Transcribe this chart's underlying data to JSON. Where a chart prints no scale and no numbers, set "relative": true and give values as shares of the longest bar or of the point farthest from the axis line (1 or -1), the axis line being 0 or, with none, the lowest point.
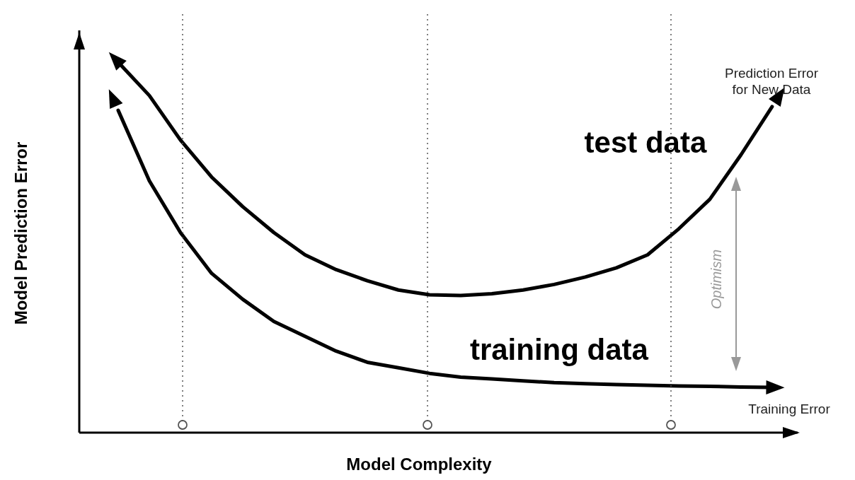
{
  "chart_data": {
    "type": "line",
    "relative": true,
    "xlabel": "Model Complexity",
    "ylabel": "Model Prediction Error",
    "tick_labels": false,
    "line_style": "solid",
    "marker": "none",
    "categories": [
      null,
      null,
      null,
      null,
      null,
      null,
      null,
      null,
      null,
      null,
      null,
      null,
      null,
      null,
      null,
      null,
      null,
      null,
      null,
      null,
      null,
      null
    ],
    "series": [
      {
        "name": "test data",
        "color": "#000000",
        "values": [
          1.0,
          0.91,
          0.79,
          0.69,
          0.61,
          0.54,
          0.48,
          0.44,
          0.41,
          0.385,
          0.372,
          0.37,
          0.375,
          0.385,
          0.4,
          0.42,
          0.445,
          0.48,
          0.55,
          0.63,
          0.75,
          0.88
        ]
      },
      {
        "name": "training data",
        "color": "#000000",
        "values": [
          0.87,
          0.68,
          0.54,
          0.43,
          0.36,
          0.3,
          0.26,
          0.22,
          0.19,
          0.175,
          0.16,
          0.15,
          0.145,
          0.14,
          0.135,
          0.132,
          0.13,
          0.128,
          0.126,
          0.125,
          0.123,
          0.122
        ]
      }
    ],
    "annotations": [
      "Prediction Error\nfor New Data",
      "Training Error",
      "Optimism"
    ]
  }
}
